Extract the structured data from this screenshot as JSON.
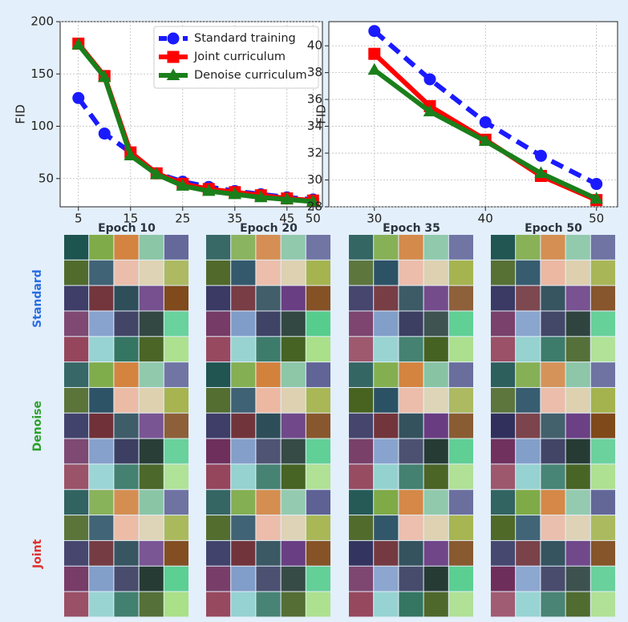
{
  "chart_data": [
    {
      "type": "line",
      "ylabel": "FID",
      "x": [
        5,
        10,
        15,
        20,
        25,
        30,
        35,
        40,
        45,
        50
      ],
      "xlim": [
        1.5,
        51.8
      ],
      "xticks": [
        5,
        15,
        25,
        35,
        45,
        50
      ],
      "ylim": [
        23,
        200
      ],
      "yticks": [
        50,
        100,
        150,
        200
      ],
      "grid": true,
      "legend": "upper right",
      "series": [
        {
          "name": "Standard training",
          "color": "#1a1aff",
          "marker": "circle",
          "linestyle": "dashed",
          "values": [
            127,
            93,
            75,
            55,
            47,
            42,
            38,
            35,
            32,
            30
          ]
        },
        {
          "name": "Joint curriculum",
          "color": "#ff0000",
          "marker": "square",
          "linestyle": "solid",
          "values": [
            179,
            148,
            75,
            55,
            45,
            40,
            37,
            34,
            31,
            29
          ]
        },
        {
          "name": "Denoise curriculum",
          "color": "#1a7f1a",
          "marker": "triangle",
          "linestyle": "solid",
          "values": [
            178,
            147,
            72,
            54,
            43,
            38,
            35,
            32,
            30,
            28
          ]
        }
      ]
    },
    {
      "type": "line",
      "ylabel": "FID",
      "x": [
        30,
        35,
        40,
        45,
        50
      ],
      "xlim": [
        25.9,
        51.9
      ],
      "xticks": [
        30,
        40,
        50
      ],
      "ylim": [
        28,
        41.8
      ],
      "yticks": [
        28,
        30,
        32,
        34,
        36,
        38,
        40
      ],
      "grid": true,
      "series": [
        {
          "name": "Standard training",
          "color": "#1a1aff",
          "marker": "circle",
          "linestyle": "dashed",
          "values": [
            41.1,
            37.5,
            34.3,
            31.8,
            29.7
          ]
        },
        {
          "name": "Joint curriculum",
          "color": "#ff0000",
          "marker": "square",
          "linestyle": "solid",
          "values": [
            39.4,
            35.5,
            33.0,
            30.3,
            28.5
          ]
        },
        {
          "name": "Denoise curriculum",
          "color": "#1a7f1a",
          "marker": "triangle",
          "linestyle": "solid",
          "values": [
            38.2,
            35.1,
            32.9,
            30.5,
            28.6
          ]
        }
      ]
    }
  ],
  "image_grid": {
    "columns": [
      "Epoch 10",
      "Epoch 20",
      "Epoch 35",
      "Epoch 50"
    ],
    "rows": [
      {
        "label": "Standard",
        "color": "#2a6de0"
      },
      {
        "label": "Denoise",
        "color": "#2ca02c"
      },
      {
        "label": "Joint",
        "color": "#e03030"
      }
    ]
  }
}
